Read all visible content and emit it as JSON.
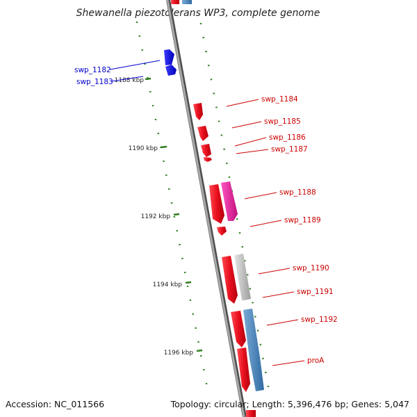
{
  "title": "Shewanella piezotolerans WP3, complete genome",
  "accession": "Accession: NC_011566",
  "topology": "Topology: circular; Length: 5,396,476 bp; Genes: 5,047",
  "colors": {
    "backbone": "#8a8a8a",
    "tick": "#2e7d1e",
    "red_gene": "#e8101e",
    "blue_gene": "#1010e0",
    "pink_gene": "#e0209a",
    "gray_gene": "#bdbdbd",
    "steel_gene": "#4a82b8",
    "red_label": "#cc0000",
    "blue_label": "#0000cc"
  },
  "ticks": [
    {
      "label": "1188 kbp"
    },
    {
      "label": "1190 kbp"
    },
    {
      "label": "1192 kbp"
    },
    {
      "label": "1194 kbp"
    },
    {
      "label": "1196 kbp"
    }
  ],
  "genes": [
    {
      "label": "swp_1182",
      "color": "blue"
    },
    {
      "label": "swp_1183",
      "color": "blue"
    },
    {
      "label": "swp_1184",
      "color": "red"
    },
    {
      "label": "swp_1185",
      "color": "red"
    },
    {
      "label": "swp_1186",
      "color": "red"
    },
    {
      "label": "swp_1187",
      "color": "red"
    },
    {
      "label": "swp_1188",
      "color": "red"
    },
    {
      "label": "swp_1189",
      "color": "red"
    },
    {
      "label": "swp_1190",
      "color": "red"
    },
    {
      "label": "swp_1191",
      "color": "red"
    },
    {
      "label": "swp_1192",
      "color": "red"
    },
    {
      "label": "proA",
      "color": "red"
    }
  ]
}
